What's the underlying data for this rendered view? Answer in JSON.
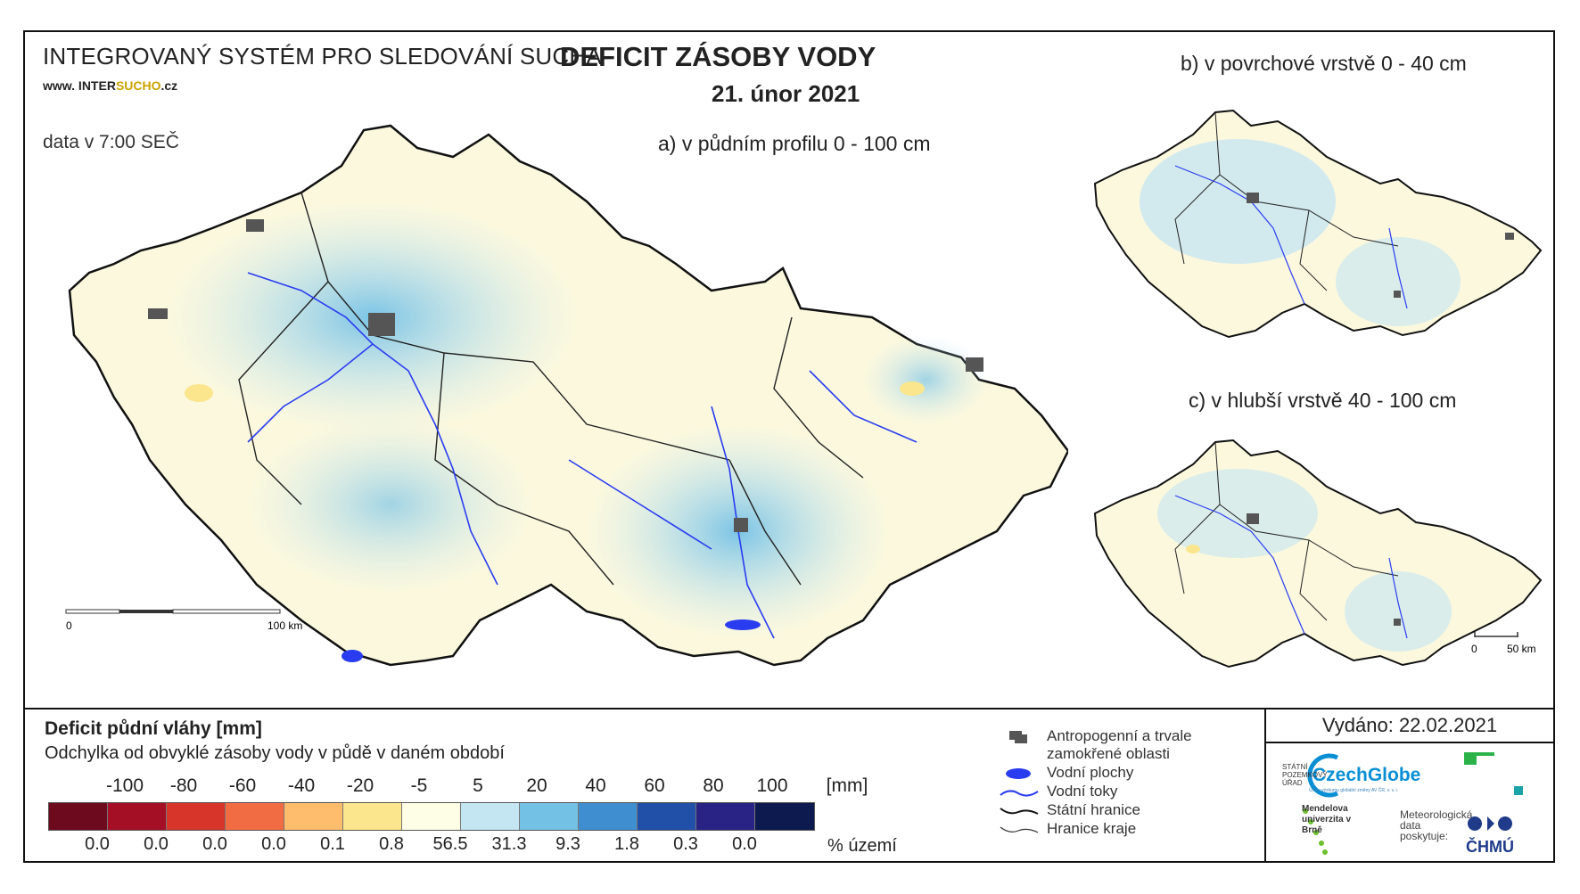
{
  "header": {
    "system_title": "INTEGROVANÝ SYSTÉM PRO SLEDOVÁNÍ SUCHA",
    "website_prefix": "www. INTER",
    "website_highlight": "SUCHO",
    "website_suffix": ".cz",
    "data_time": "data v 7:00 SEČ",
    "main_title": "DEFICIT ZÁSOBY VODY",
    "date": "21. únor 2021"
  },
  "maps": {
    "a": {
      "label": "a) v půdním profilu 0 - 100 cm",
      "scale_start": "0",
      "scale_end": "100 km"
    },
    "b": {
      "label": "b) v povrchové vrstvě 0 - 40 cm"
    },
    "c": {
      "label": "c) v hlubší vrstvě 40 - 100 cm",
      "scale_start": "0",
      "scale_end": "50 km"
    }
  },
  "legend": {
    "title": "Deficit půdní vláhy  [mm]",
    "subtitle": "Odchylka od obvyklé zásoby vody v půdě v daném období",
    "tick_labels": [
      "-100",
      "-80",
      "-60",
      "-40",
      "-20",
      "-5",
      "5",
      "20",
      "40",
      "60",
      "80",
      "100"
    ],
    "unit": "[mm]",
    "classes": [
      {
        "color": "#6e0a1e",
        "pct": "0.0"
      },
      {
        "color": "#a50f26",
        "pct": "0.0"
      },
      {
        "color": "#d7342a",
        "pct": "0.0"
      },
      {
        "color": "#f26c43",
        "pct": "0.0"
      },
      {
        "color": "#fdbd6d",
        "pct": "0.1"
      },
      {
        "color": "#fbe68d",
        "pct": "0.8"
      },
      {
        "color": "#fefde6",
        "pct": "56.5"
      },
      {
        "color": "#c4e6f3",
        "pct": "31.3"
      },
      {
        "color": "#74c1e6",
        "pct": "9.3"
      },
      {
        "color": "#3f8ed0",
        "pct": "1.8"
      },
      {
        "color": "#2150a8",
        "pct": "0.3"
      },
      {
        "color": "#2a2386",
        "pct": "0.0"
      },
      {
        "color": "#0d1a4f",
        "pct": ""
      }
    ],
    "pct_unit": "% území",
    "items": [
      {
        "icon": "urban-area-icon",
        "label": "Antropogenní a trvale zamokřené oblasti"
      },
      {
        "icon": "water-body-icon",
        "label": "Vodní plochy"
      },
      {
        "icon": "river-icon",
        "label": "Vodní toky"
      },
      {
        "icon": "state-border-icon",
        "label": "Státní hranice"
      },
      {
        "icon": "region-border-icon",
        "label": "Hranice kraje"
      }
    ]
  },
  "footer": {
    "issued": "Vydáno: 22.02.2021",
    "czechglobe": "CzechGlobe",
    "czechglobe_sub": "Ústav výzkumu globální změny AV ČR, v. v. i.",
    "spu": "STÁTNÍ POZEMKOVÝ ÚŘAD",
    "mendel": "Mendelova univerzita v Brně",
    "meteo": "Meteorologická data poskytuje:",
    "chmu": "ČHMÚ"
  },
  "colors": {
    "map_base": "#fbf8de",
    "map_light_blue": "#c4e6f3",
    "map_blue": "#74c1e6",
    "river": "#2a3cf0",
    "urban": "#555555",
    "border": "#111111"
  }
}
